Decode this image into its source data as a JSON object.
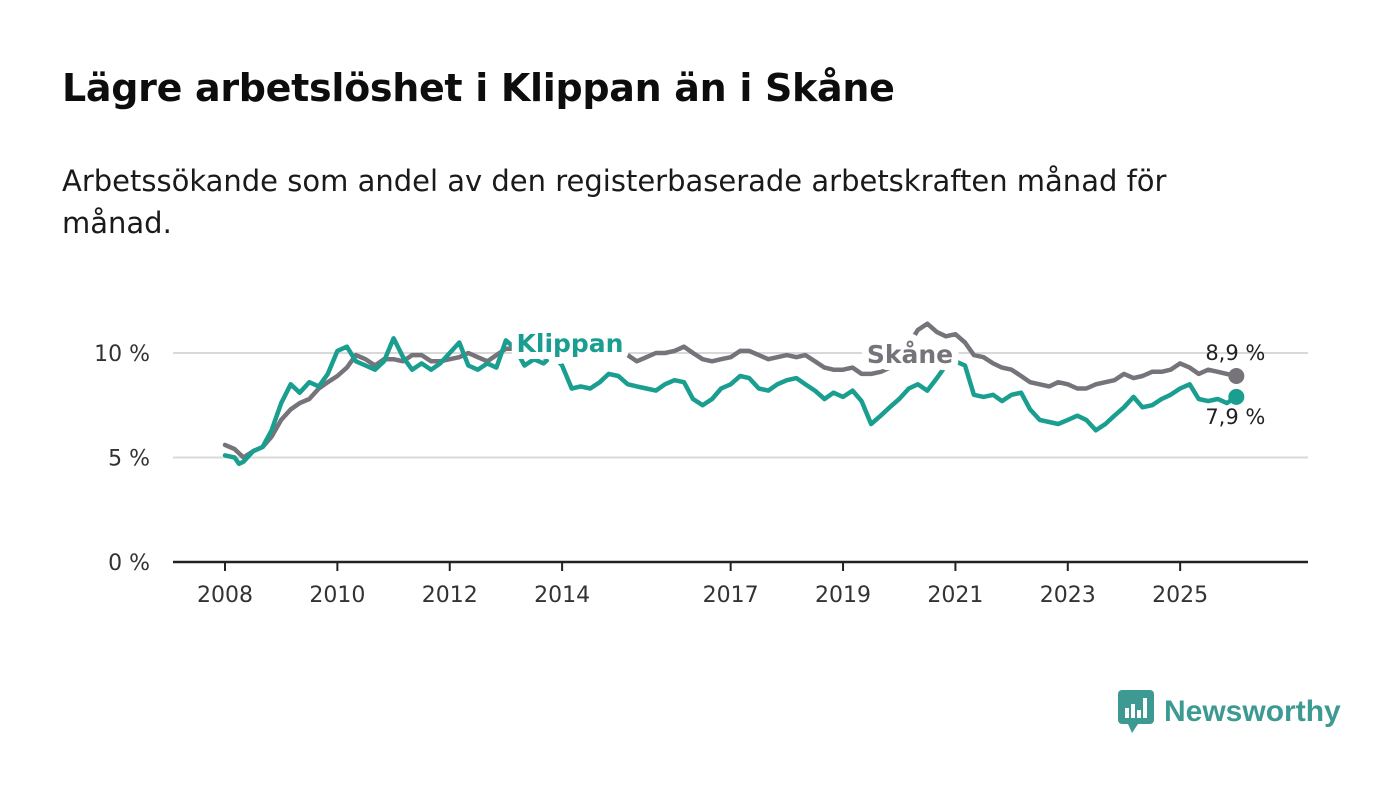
{
  "header": {
    "title": "Lägre arbetslöshet i Klippan än i Skåne",
    "subtitle": "Arbetssökande som andel av den registerbaserade arbetskraften månad för månad."
  },
  "brand": {
    "name": "Newsworthy",
    "color": "#3d9a92",
    "icon": "bar-chart-speech-bubble-icon"
  },
  "colors": {
    "klippan": "#1a9e90",
    "skane": "#76747a",
    "grid": "#d9d9d9",
    "axis": "#222222"
  },
  "chart_data": {
    "type": "line",
    "title": "Lägre arbetslöshet i Klippan än i Skåne",
    "subtitle": "Arbetssökande som andel av den registerbaserade arbetskraften månad för månad.",
    "xlabel": "",
    "ylabel": "",
    "xlim": [
      2008.0,
      2026.35
    ],
    "ylim": [
      0,
      13.3
    ],
    "y_ticks": [
      0,
      5,
      10
    ],
    "y_tick_labels": [
      "0 %",
      "5 %",
      "10 %"
    ],
    "x_ticks": [
      2008,
      2010,
      2012,
      2014,
      2017,
      2019,
      2021,
      2023,
      2025
    ],
    "x_tick_labels": [
      "2008",
      "2010",
      "2012",
      "2014",
      "2017",
      "2019",
      "2021",
      "2023",
      "2025"
    ],
    "grid": true,
    "legend": "inline labels",
    "series": [
      {
        "name": "Skåne",
        "label": "Skåne",
        "end_label": "8,9 %",
        "points": [
          [
            2008.0,
            5.6
          ],
          [
            2008.17,
            5.4
          ],
          [
            2008.33,
            5.0
          ],
          [
            2008.5,
            5.3
          ],
          [
            2008.67,
            5.5
          ],
          [
            2008.83,
            6.0
          ],
          [
            2009.0,
            6.8
          ],
          [
            2009.17,
            7.3
          ],
          [
            2009.33,
            7.6
          ],
          [
            2009.5,
            7.8
          ],
          [
            2009.67,
            8.3
          ],
          [
            2009.83,
            8.6
          ],
          [
            2010.0,
            8.9
          ],
          [
            2010.17,
            9.3
          ],
          [
            2010.33,
            9.9
          ],
          [
            2010.5,
            9.7
          ],
          [
            2010.67,
            9.4
          ],
          [
            2010.83,
            9.7
          ],
          [
            2011.0,
            9.7
          ],
          [
            2011.17,
            9.6
          ],
          [
            2011.33,
            9.9
          ],
          [
            2011.5,
            9.9
          ],
          [
            2011.67,
            9.6
          ],
          [
            2011.83,
            9.6
          ],
          [
            2012.0,
            9.7
          ],
          [
            2012.17,
            9.8
          ],
          [
            2012.33,
            10.0
          ],
          [
            2012.5,
            9.8
          ],
          [
            2012.67,
            9.6
          ],
          [
            2012.83,
            9.9
          ],
          [
            2013.0,
            10.2
          ],
          [
            2013.17,
            10.2
          ],
          [
            2013.33,
            10.3
          ],
          [
            2013.5,
            10.1
          ],
          [
            2013.67,
            9.8
          ],
          [
            2013.83,
            9.9
          ],
          [
            2014.0,
            9.9
          ],
          [
            2014.17,
            9.8
          ],
          [
            2014.33,
            9.9
          ],
          [
            2014.5,
            10.1
          ],
          [
            2014.67,
            10.0
          ],
          [
            2014.83,
            10.1
          ],
          [
            2015.0,
            10.0
          ],
          [
            2015.17,
            9.9
          ],
          [
            2015.33,
            9.6
          ],
          [
            2015.5,
            9.8
          ],
          [
            2015.67,
            10.0
          ],
          [
            2015.83,
            10.0
          ],
          [
            2016.0,
            10.1
          ],
          [
            2016.17,
            10.3
          ],
          [
            2016.33,
            10.0
          ],
          [
            2016.5,
            9.7
          ],
          [
            2016.67,
            9.6
          ],
          [
            2016.83,
            9.7
          ],
          [
            2017.0,
            9.8
          ],
          [
            2017.17,
            10.1
          ],
          [
            2017.33,
            10.1
          ],
          [
            2017.5,
            9.9
          ],
          [
            2017.67,
            9.7
          ],
          [
            2017.83,
            9.8
          ],
          [
            2018.0,
            9.9
          ],
          [
            2018.17,
            9.8
          ],
          [
            2018.33,
            9.9
          ],
          [
            2018.5,
            9.6
          ],
          [
            2018.67,
            9.3
          ],
          [
            2018.83,
            9.2
          ],
          [
            2019.0,
            9.2
          ],
          [
            2019.17,
            9.3
          ],
          [
            2019.33,
            9.0
          ],
          [
            2019.5,
            9.0
          ],
          [
            2019.67,
            9.1
          ],
          [
            2019.83,
            9.3
          ],
          [
            2020.0,
            9.6
          ],
          [
            2020.17,
            10.4
          ],
          [
            2020.33,
            11.1
          ],
          [
            2020.5,
            11.4
          ],
          [
            2020.67,
            11.0
          ],
          [
            2020.83,
            10.8
          ],
          [
            2021.0,
            10.9
          ],
          [
            2021.17,
            10.5
          ],
          [
            2021.33,
            9.9
          ],
          [
            2021.5,
            9.8
          ],
          [
            2021.67,
            9.5
          ],
          [
            2021.83,
            9.3
          ],
          [
            2022.0,
            9.2
          ],
          [
            2022.17,
            8.9
          ],
          [
            2022.33,
            8.6
          ],
          [
            2022.5,
            8.5
          ],
          [
            2022.67,
            8.4
          ],
          [
            2022.83,
            8.6
          ],
          [
            2023.0,
            8.5
          ],
          [
            2023.17,
            8.3
          ],
          [
            2023.33,
            8.3
          ],
          [
            2023.5,
            8.5
          ],
          [
            2023.67,
            8.6
          ],
          [
            2023.83,
            8.7
          ],
          [
            2024.0,
            9.0
          ],
          [
            2024.17,
            8.8
          ],
          [
            2024.33,
            8.9
          ],
          [
            2024.5,
            9.1
          ],
          [
            2024.67,
            9.1
          ],
          [
            2024.83,
            9.2
          ],
          [
            2025.0,
            9.5
          ],
          [
            2025.17,
            9.3
          ],
          [
            2025.33,
            9.0
          ],
          [
            2025.5,
            9.2
          ],
          [
            2025.67,
            9.1
          ],
          [
            2025.83,
            9.0
          ],
          [
            2026.0,
            8.9
          ]
        ]
      },
      {
        "name": "Klippan",
        "label": "Klippan",
        "end_label": "7,9 %",
        "points": [
          [
            2008.0,
            5.1
          ],
          [
            2008.17,
            5.0
          ],
          [
            2008.25,
            4.7
          ],
          [
            2008.33,
            4.8
          ],
          [
            2008.5,
            5.3
          ],
          [
            2008.67,
            5.5
          ],
          [
            2008.83,
            6.3
          ],
          [
            2009.0,
            7.6
          ],
          [
            2009.17,
            8.5
          ],
          [
            2009.33,
            8.1
          ],
          [
            2009.5,
            8.6
          ],
          [
            2009.67,
            8.4
          ],
          [
            2009.83,
            9.0
          ],
          [
            2010.0,
            10.1
          ],
          [
            2010.17,
            10.3
          ],
          [
            2010.33,
            9.6
          ],
          [
            2010.5,
            9.4
          ],
          [
            2010.67,
            9.2
          ],
          [
            2010.83,
            9.6
          ],
          [
            2011.0,
            10.7
          ],
          [
            2011.17,
            9.8
          ],
          [
            2011.33,
            9.2
          ],
          [
            2011.5,
            9.5
          ],
          [
            2011.67,
            9.2
          ],
          [
            2011.83,
            9.5
          ],
          [
            2012.0,
            10.0
          ],
          [
            2012.17,
            10.5
          ],
          [
            2012.33,
            9.4
          ],
          [
            2012.5,
            9.2
          ],
          [
            2012.67,
            9.5
          ],
          [
            2012.83,
            9.3
          ],
          [
            2013.0,
            10.6
          ],
          [
            2013.17,
            10.2
          ],
          [
            2013.33,
            9.4
          ],
          [
            2013.5,
            9.7
          ],
          [
            2013.67,
            9.5
          ],
          [
            2013.83,
            9.9
          ],
          [
            2014.0,
            9.4
          ],
          [
            2014.17,
            8.3
          ],
          [
            2014.33,
            8.4
          ],
          [
            2014.5,
            8.3
          ],
          [
            2014.67,
            8.6
          ],
          [
            2014.83,
            9.0
          ],
          [
            2015.0,
            8.9
          ],
          [
            2015.17,
            8.5
          ],
          [
            2015.33,
            8.4
          ],
          [
            2015.5,
            8.3
          ],
          [
            2015.67,
            8.2
          ],
          [
            2015.83,
            8.5
          ],
          [
            2016.0,
            8.7
          ],
          [
            2016.17,
            8.6
          ],
          [
            2016.33,
            7.8
          ],
          [
            2016.5,
            7.5
          ],
          [
            2016.67,
            7.8
          ],
          [
            2016.83,
            8.3
          ],
          [
            2017.0,
            8.5
          ],
          [
            2017.17,
            8.9
          ],
          [
            2017.33,
            8.8
          ],
          [
            2017.5,
            8.3
          ],
          [
            2017.67,
            8.2
          ],
          [
            2017.83,
            8.5
          ],
          [
            2018.0,
            8.7
          ],
          [
            2018.17,
            8.8
          ],
          [
            2018.33,
            8.5
          ],
          [
            2018.5,
            8.2
          ],
          [
            2018.67,
            7.8
          ],
          [
            2018.83,
            8.1
          ],
          [
            2019.0,
            7.9
          ],
          [
            2019.17,
            8.2
          ],
          [
            2019.33,
            7.7
          ],
          [
            2019.5,
            6.6
          ],
          [
            2019.67,
            7.0
          ],
          [
            2019.83,
            7.4
          ],
          [
            2020.0,
            7.8
          ],
          [
            2020.17,
            8.3
          ],
          [
            2020.33,
            8.5
          ],
          [
            2020.5,
            8.2
          ],
          [
            2020.67,
            8.8
          ],
          [
            2020.83,
            9.4
          ],
          [
            2021.0,
            9.6
          ],
          [
            2021.17,
            9.4
          ],
          [
            2021.33,
            8.0
          ],
          [
            2021.5,
            7.9
          ],
          [
            2021.67,
            8.0
          ],
          [
            2021.83,
            7.7
          ],
          [
            2022.0,
            8.0
          ],
          [
            2022.17,
            8.1
          ],
          [
            2022.33,
            7.3
          ],
          [
            2022.5,
            6.8
          ],
          [
            2022.67,
            6.7
          ],
          [
            2022.83,
            6.6
          ],
          [
            2023.0,
            6.8
          ],
          [
            2023.17,
            7.0
          ],
          [
            2023.33,
            6.8
          ],
          [
            2023.5,
            6.3
          ],
          [
            2023.67,
            6.6
          ],
          [
            2023.83,
            7.0
          ],
          [
            2024.0,
            7.4
          ],
          [
            2024.17,
            7.9
          ],
          [
            2024.33,
            7.4
          ],
          [
            2024.5,
            7.5
          ],
          [
            2024.67,
            7.8
          ],
          [
            2024.83,
            8.0
          ],
          [
            2025.0,
            8.3
          ],
          [
            2025.17,
            8.5
          ],
          [
            2025.33,
            7.8
          ],
          [
            2025.5,
            7.7
          ],
          [
            2025.67,
            7.8
          ],
          [
            2025.83,
            7.6
          ],
          [
            2026.0,
            7.9
          ]
        ]
      }
    ]
  }
}
